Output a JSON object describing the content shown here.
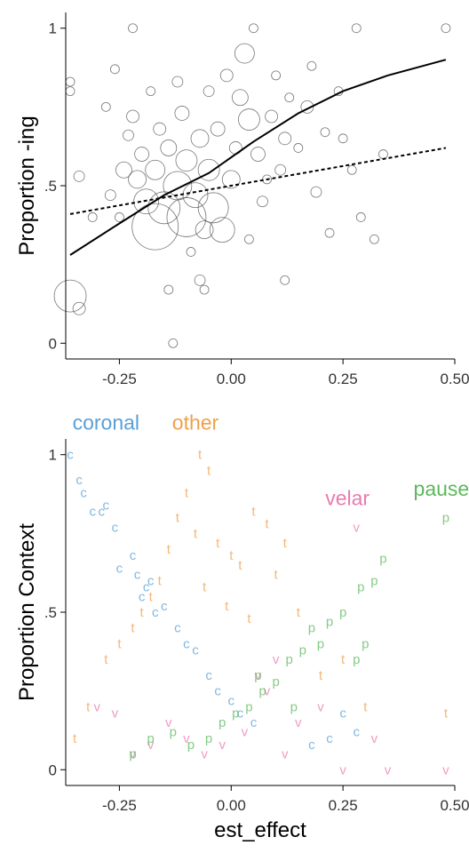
{
  "chart_data": [
    {
      "type": "scatter",
      "ylabel": "Proportion -ing",
      "xlim": [
        -0.37,
        0.5
      ],
      "ylim": [
        -0.05,
        1.05
      ],
      "x_ticks": [
        -0.25,
        0.0,
        0.25,
        0.5
      ],
      "x_tick_labels": [
        "-0.25",
        "0.00",
        "0.25",
        "0.50"
      ],
      "y_ticks": [
        0,
        0.5,
        1
      ],
      "y_tick_labels": [
        "0",
        ".5",
        "1"
      ],
      "grid": false,
      "points": [
        {
          "x": -0.36,
          "y": 0.15,
          "s": 18
        },
        {
          "x": -0.34,
          "y": 0.11,
          "s": 7
        },
        {
          "x": -0.36,
          "y": 0.83,
          "s": 5
        },
        {
          "x": -0.36,
          "y": 0.8,
          "s": 5
        },
        {
          "x": -0.34,
          "y": 0.53,
          "s": 6
        },
        {
          "x": -0.31,
          "y": 0.4,
          "s": 5
        },
        {
          "x": -0.28,
          "y": 0.75,
          "s": 5
        },
        {
          "x": -0.27,
          "y": 0.47,
          "s": 6
        },
        {
          "x": -0.26,
          "y": 0.87,
          "s": 5
        },
        {
          "x": -0.25,
          "y": 0.4,
          "s": 5
        },
        {
          "x": -0.24,
          "y": 0.55,
          "s": 9
        },
        {
          "x": -0.23,
          "y": 0.66,
          "s": 6
        },
        {
          "x": -0.22,
          "y": 1.0,
          "s": 5
        },
        {
          "x": -0.22,
          "y": 0.72,
          "s": 7
        },
        {
          "x": -0.21,
          "y": 0.52,
          "s": 10
        },
        {
          "x": -0.2,
          "y": 0.6,
          "s": 8
        },
        {
          "x": -0.19,
          "y": 0.45,
          "s": 14
        },
        {
          "x": -0.18,
          "y": 0.8,
          "s": 5
        },
        {
          "x": -0.17,
          "y": 0.37,
          "s": 26
        },
        {
          "x": -0.17,
          "y": 0.55,
          "s": 11
        },
        {
          "x": -0.16,
          "y": 0.68,
          "s": 7
        },
        {
          "x": -0.15,
          "y": 0.43,
          "s": 18
        },
        {
          "x": -0.14,
          "y": 0.62,
          "s": 9
        },
        {
          "x": -0.14,
          "y": 0.17,
          "s": 5
        },
        {
          "x": -0.13,
          "y": 0.0,
          "s": 5
        },
        {
          "x": -0.12,
          "y": 0.5,
          "s": 16
        },
        {
          "x": -0.12,
          "y": 0.83,
          "s": 6
        },
        {
          "x": -0.11,
          "y": 0.73,
          "s": 8
        },
        {
          "x": -0.1,
          "y": 0.58,
          "s": 12
        },
        {
          "x": -0.1,
          "y": 0.4,
          "s": 22
        },
        {
          "x": -0.09,
          "y": 0.29,
          "s": 5
        },
        {
          "x": -0.08,
          "y": 0.47,
          "s": 14
        },
        {
          "x": -0.07,
          "y": 0.65,
          "s": 10
        },
        {
          "x": -0.07,
          "y": 0.2,
          "s": 6
        },
        {
          "x": -0.06,
          "y": 0.36,
          "s": 10
        },
        {
          "x": -0.05,
          "y": 0.55,
          "s": 12
        },
        {
          "x": -0.05,
          "y": 0.8,
          "s": 6
        },
        {
          "x": -0.04,
          "y": 0.43,
          "s": 17
        },
        {
          "x": -0.03,
          "y": 0.68,
          "s": 8
        },
        {
          "x": -0.02,
          "y": 0.36,
          "s": 14
        },
        {
          "x": -0.01,
          "y": 0.85,
          "s": 7
        },
        {
          "x": 0.0,
          "y": 0.52,
          "s": 10
        },
        {
          "x": 0.01,
          "y": 0.62,
          "s": 7
        },
        {
          "x": 0.02,
          "y": 0.78,
          "s": 9
        },
        {
          "x": 0.03,
          "y": 0.92,
          "s": 11
        },
        {
          "x": 0.04,
          "y": 0.71,
          "s": 12
        },
        {
          "x": 0.05,
          "y": 1.0,
          "s": 5
        },
        {
          "x": 0.06,
          "y": 0.6,
          "s": 8
        },
        {
          "x": 0.07,
          "y": 0.45,
          "s": 6
        },
        {
          "x": 0.08,
          "y": 0.52,
          "s": 5
        },
        {
          "x": 0.09,
          "y": 0.72,
          "s": 7
        },
        {
          "x": 0.1,
          "y": 0.85,
          "s": 5
        },
        {
          "x": 0.11,
          "y": 0.55,
          "s": 6
        },
        {
          "x": 0.12,
          "y": 0.65,
          "s": 7
        },
        {
          "x": 0.13,
          "y": 0.78,
          "s": 5
        },
        {
          "x": 0.15,
          "y": 0.62,
          "s": 5
        },
        {
          "x": 0.17,
          "y": 0.75,
          "s": 7
        },
        {
          "x": 0.18,
          "y": 0.88,
          "s": 5
        },
        {
          "x": 0.19,
          "y": 0.48,
          "s": 6
        },
        {
          "x": 0.21,
          "y": 0.67,
          "s": 5
        },
        {
          "x": 0.22,
          "y": 0.35,
          "s": 5
        },
        {
          "x": 0.24,
          "y": 0.8,
          "s": 5
        },
        {
          "x": 0.25,
          "y": 0.65,
          "s": 5
        },
        {
          "x": 0.27,
          "y": 0.55,
          "s": 5
        },
        {
          "x": 0.28,
          "y": 1.0,
          "s": 5
        },
        {
          "x": 0.29,
          "y": 0.4,
          "s": 5
        },
        {
          "x": 0.32,
          "y": 0.33,
          "s": 5
        },
        {
          "x": 0.34,
          "y": 0.6,
          "s": 5
        },
        {
          "x": 0.48,
          "y": 1.0,
          "s": 5
        },
        {
          "x": 0.12,
          "y": 0.2,
          "s": 5
        },
        {
          "x": 0.04,
          "y": 0.33,
          "s": 5
        },
        {
          "x": -0.06,
          "y": 0.17,
          "s": 5
        }
      ],
      "lines": [
        {
          "style": "solid",
          "x": [
            -0.36,
            -0.25,
            -0.15,
            -0.05,
            0.05,
            0.15,
            0.25,
            0.35,
            0.48
          ],
          "y": [
            0.28,
            0.38,
            0.47,
            0.54,
            0.64,
            0.73,
            0.8,
            0.85,
            0.9
          ]
        },
        {
          "style": "dashed",
          "x": [
            -0.36,
            0.48
          ],
          "y": [
            0.41,
            0.62
          ]
        }
      ]
    },
    {
      "type": "scatter",
      "xlabel": "est_effect",
      "ylabel": "Proportion Context",
      "xlim": [
        -0.37,
        0.5
      ],
      "ylim": [
        -0.05,
        1.05
      ],
      "x_ticks": [
        -0.25,
        0.0,
        0.25,
        0.5
      ],
      "x_tick_labels": [
        "-0.25",
        "0.00",
        "0.25",
        "0.50"
      ],
      "y_ticks": [
        0,
        0.5,
        1
      ],
      "y_tick_labels": [
        "0",
        ".5",
        "1"
      ],
      "grid": false,
      "annotations": [
        {
          "text": "coronal",
          "x": -0.28,
          "y": 1.08,
          "color": "#5aa0d6"
        },
        {
          "text": "other",
          "x": -0.08,
          "y": 1.08,
          "color": "#f0a04a"
        },
        {
          "text": "velar",
          "x": 0.26,
          "y": 0.84,
          "color": "#e87bb0"
        },
        {
          "text": "pause",
          "x": 0.47,
          "y": 0.87,
          "color": "#5cb85c"
        }
      ],
      "series": [
        {
          "name": "coronal",
          "marker": "c",
          "color": "#5aa0d6",
          "x": [
            -0.36,
            -0.34,
            -0.33,
            -0.31,
            -0.29,
            -0.26,
            -0.28,
            -0.25,
            -0.22,
            -0.21,
            -0.19,
            -0.17,
            -0.15,
            -0.12,
            -0.1,
            -0.08,
            -0.05,
            -0.03,
            0.0,
            0.02,
            0.05,
            0.28,
            0.25,
            0.22,
            0.18,
            -0.2,
            -0.18
          ],
          "y": [
            1.0,
            0.92,
            0.88,
            0.82,
            0.82,
            0.77,
            0.84,
            0.64,
            0.68,
            0.62,
            0.58,
            0.5,
            0.52,
            0.45,
            0.4,
            0.38,
            0.3,
            0.25,
            0.22,
            0.18,
            0.15,
            0.12,
            0.18,
            0.1,
            0.08,
            0.55,
            0.6
          ]
        },
        {
          "name": "other",
          "marker": "t",
          "color": "#f0a04a",
          "x": [
            -0.07,
            -0.05,
            -0.1,
            -0.12,
            -0.08,
            -0.03,
            0.0,
            0.02,
            0.05,
            0.08,
            -0.14,
            -0.16,
            -0.18,
            -0.2,
            -0.22,
            -0.25,
            -0.28,
            -0.32,
            -0.35,
            0.1,
            0.12,
            0.15,
            0.2,
            0.25,
            0.3,
            0.48,
            -0.06,
            -0.01,
            0.04
          ],
          "y": [
            1.0,
            0.95,
            0.88,
            0.8,
            0.75,
            0.72,
            0.68,
            0.65,
            0.82,
            0.78,
            0.7,
            0.6,
            0.55,
            0.5,
            0.45,
            0.4,
            0.35,
            0.2,
            0.1,
            0.62,
            0.72,
            0.5,
            0.3,
            0.35,
            0.2,
            0.18,
            0.58,
            0.52,
            0.48
          ]
        },
        {
          "name": "velar",
          "marker": "v",
          "color": "#e87bb0",
          "x": [
            0.28,
            0.32,
            0.2,
            0.15,
            0.1,
            0.06,
            0.03,
            -0.02,
            -0.06,
            -0.1,
            -0.14,
            -0.18,
            -0.22,
            -0.26,
            -0.3,
            0.25,
            0.35,
            0.48,
            0.08,
            0.12
          ],
          "y": [
            0.77,
            0.1,
            0.2,
            0.15,
            0.35,
            0.3,
            0.12,
            0.08,
            0.05,
            0.1,
            0.15,
            0.08,
            0.05,
            0.18,
            0.2,
            0.0,
            0.0,
            0.0,
            0.25,
            0.05
          ]
        },
        {
          "name": "pause",
          "marker": "p",
          "color": "#5cb85c",
          "x": [
            0.48,
            0.34,
            0.32,
            0.29,
            0.25,
            0.22,
            0.2,
            0.18,
            0.16,
            0.13,
            0.1,
            0.07,
            0.04,
            0.01,
            -0.02,
            -0.05,
            -0.09,
            -0.13,
            -0.18,
            -0.22,
            0.28,
            0.3,
            0.14,
            0.06
          ],
          "y": [
            0.8,
            0.67,
            0.6,
            0.58,
            0.5,
            0.47,
            0.4,
            0.45,
            0.38,
            0.35,
            0.28,
            0.25,
            0.2,
            0.18,
            0.15,
            0.1,
            0.08,
            0.12,
            0.1,
            0.05,
            0.35,
            0.4,
            0.2,
            0.3
          ]
        }
      ]
    }
  ]
}
